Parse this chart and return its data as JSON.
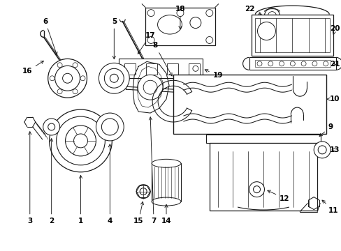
{
  "bg_color": "#ffffff",
  "line_color": "#1a1a1a",
  "fig_width": 4.89,
  "fig_height": 3.6,
  "dpi": 100,
  "label_fs": 7.5,
  "lw": 0.75
}
